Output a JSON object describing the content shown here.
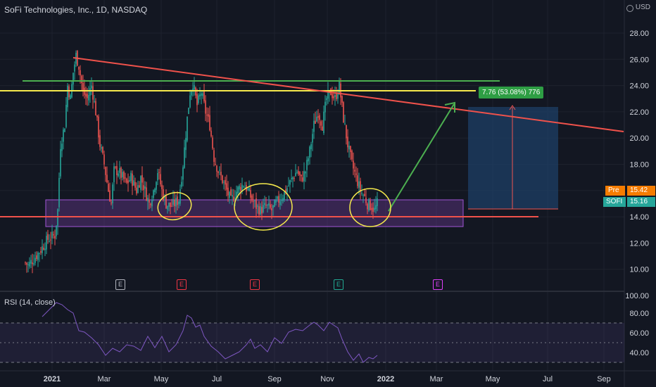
{
  "header": {
    "title": "SoFi Technologies, Inc., 1D, NASDAQ",
    "currency": "USD"
  },
  "price_axis": {
    "ticks": [
      "28.00",
      "26.00",
      "24.00",
      "22.00",
      "20.00",
      "18.00",
      "16.00",
      "14.00",
      "12.00",
      "10.00"
    ]
  },
  "rsi_axis": {
    "ticks": [
      "100.00",
      "80.00",
      "60.00",
      "40.00"
    ]
  },
  "time_axis": {
    "ticks": [
      "2021",
      "Mar",
      "May",
      "Jul",
      "Sep",
      "Nov",
      "2022",
      "Mar",
      "May",
      "Jul",
      "Sep"
    ]
  },
  "badges": {
    "pre_label": "Pre",
    "pre_value": "15.42",
    "ticker": "SOFI",
    "last_value": "15.16"
  },
  "measure": {
    "label": "7.76 (53.08%) 776"
  },
  "earnings": [
    {
      "label": "E",
      "color": "#b2b5be"
    },
    {
      "label": "E",
      "color": "#f23645"
    },
    {
      "label": "E",
      "color": "#f23645"
    },
    {
      "label": "E",
      "color": "#22ab94"
    },
    {
      "label": "E",
      "color": "#e040fb"
    }
  ],
  "rsi": {
    "label": "RSI (14, close)"
  },
  "colors": {
    "up": "#26a69a",
    "down": "#ef5350",
    "trendline": "#f0524b",
    "resistance": "#f5e94c",
    "green_line": "#4caf50",
    "zone": "#7b3fa6",
    "rsi_line": "#7e57c2",
    "ann": "#f5e94c"
  },
  "chart_data": {
    "type": "candlestick",
    "price_range": [
      9.5,
      29.5
    ],
    "series": [
      {
        "name": "SOFI",
        "note": "daily candles Jan 2021 – Dec 2021"
      }
    ],
    "levels": {
      "resistance": 23.55,
      "green": 24.4,
      "support": 14.05
    },
    "zone": [
      13.3,
      15.4
    ],
    "target": {
      "from": 14.7,
      "to": 22.4
    },
    "rsi_levels": [
      70,
      50,
      30
    ]
  }
}
